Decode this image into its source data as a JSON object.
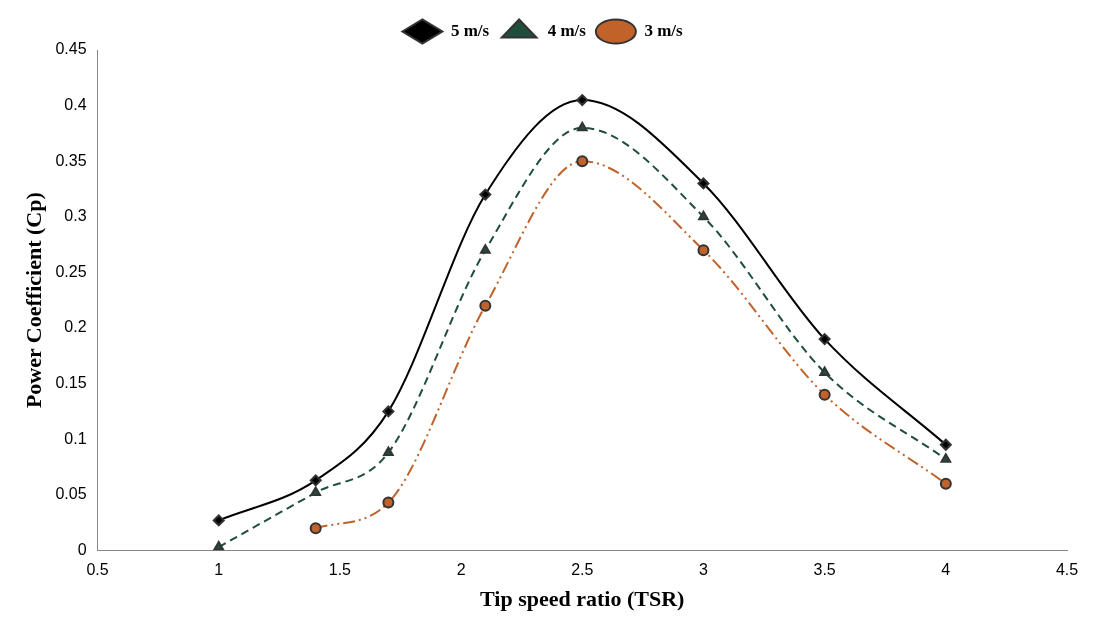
{
  "chart_data": {
    "type": "line",
    "xlabel": "Tip speed ratio (TSR)",
    "ylabel": "Power Coefficient (Cp)",
    "xlim": [
      0.5,
      4.5
    ],
    "xticks": [
      0.5,
      1,
      1.5,
      2,
      2.5,
      3,
      3.5,
      4,
      4.5
    ],
    "ylim": [
      0,
      0.45
    ],
    "yticks": [
      0,
      0.05,
      0.1,
      0.15,
      0.2,
      0.25,
      0.3,
      0.35,
      0.4,
      0.45
    ],
    "grid": false,
    "legend": "top",
    "series": [
      {
        "name": "5 m/s",
        "color": "#000000",
        "marker": "diamond",
        "line_style": "solid",
        "x": [
          1,
          1.4,
          1.7,
          2.1,
          2.5,
          3,
          3.5,
          4
        ],
        "values": [
          0.027,
          0.063,
          0.125,
          0.32,
          0.405,
          0.33,
          0.19,
          0.095
        ]
      },
      {
        "name": "4 m/s",
        "color": "#1f4e3d",
        "marker": "triangle",
        "line_style": "dashed",
        "x": [
          1,
          1.4,
          1.7,
          2.1,
          2.5,
          3,
          3.5,
          4
        ],
        "values": [
          0.003,
          0.052,
          0.088,
          0.27,
          0.38,
          0.3,
          0.16,
          0.082
        ]
      },
      {
        "name": "3 m/s",
        "color": "#c0622a",
        "marker": "circle",
        "line_style": "dotted",
        "x": [
          1.4,
          1.7,
          2.1,
          2.5,
          3,
          3.5,
          4
        ],
        "values": [
          0.02,
          0.043,
          0.22,
          0.35,
          0.27,
          0.14,
          0.06
        ]
      }
    ]
  }
}
